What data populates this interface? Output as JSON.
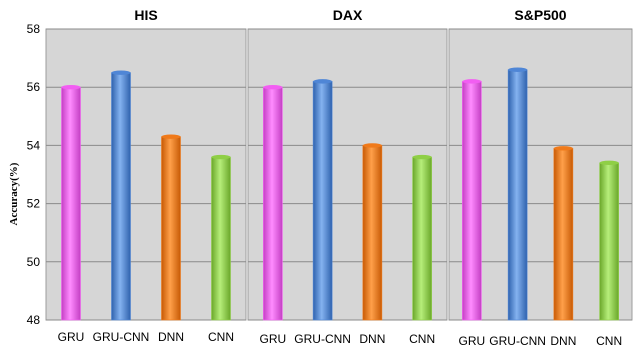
{
  "chart_data": {
    "type": "bar",
    "ylabel": "Accuracy(%)",
    "ylim": [
      48,
      58
    ],
    "yticks": [
      "48",
      "50",
      "52",
      "54",
      "56",
      "58"
    ],
    "grid": true,
    "legend": "none",
    "categories": [
      "GRU",
      "GRU-CNN",
      "DNN",
      "CNN"
    ],
    "colors": [
      "#f25ef2",
      "#4f86d6",
      "#f07a1a",
      "#8fcf46"
    ],
    "panels": [
      {
        "title": "HIS",
        "values": [
          56.0,
          56.5,
          54.3,
          53.6
        ]
      },
      {
        "title": "DAX",
        "values": [
          56.0,
          56.2,
          54.0,
          53.6
        ]
      },
      {
        "title": "S&P500",
        "values": [
          56.2,
          56.6,
          53.9,
          53.4
        ]
      }
    ]
  }
}
